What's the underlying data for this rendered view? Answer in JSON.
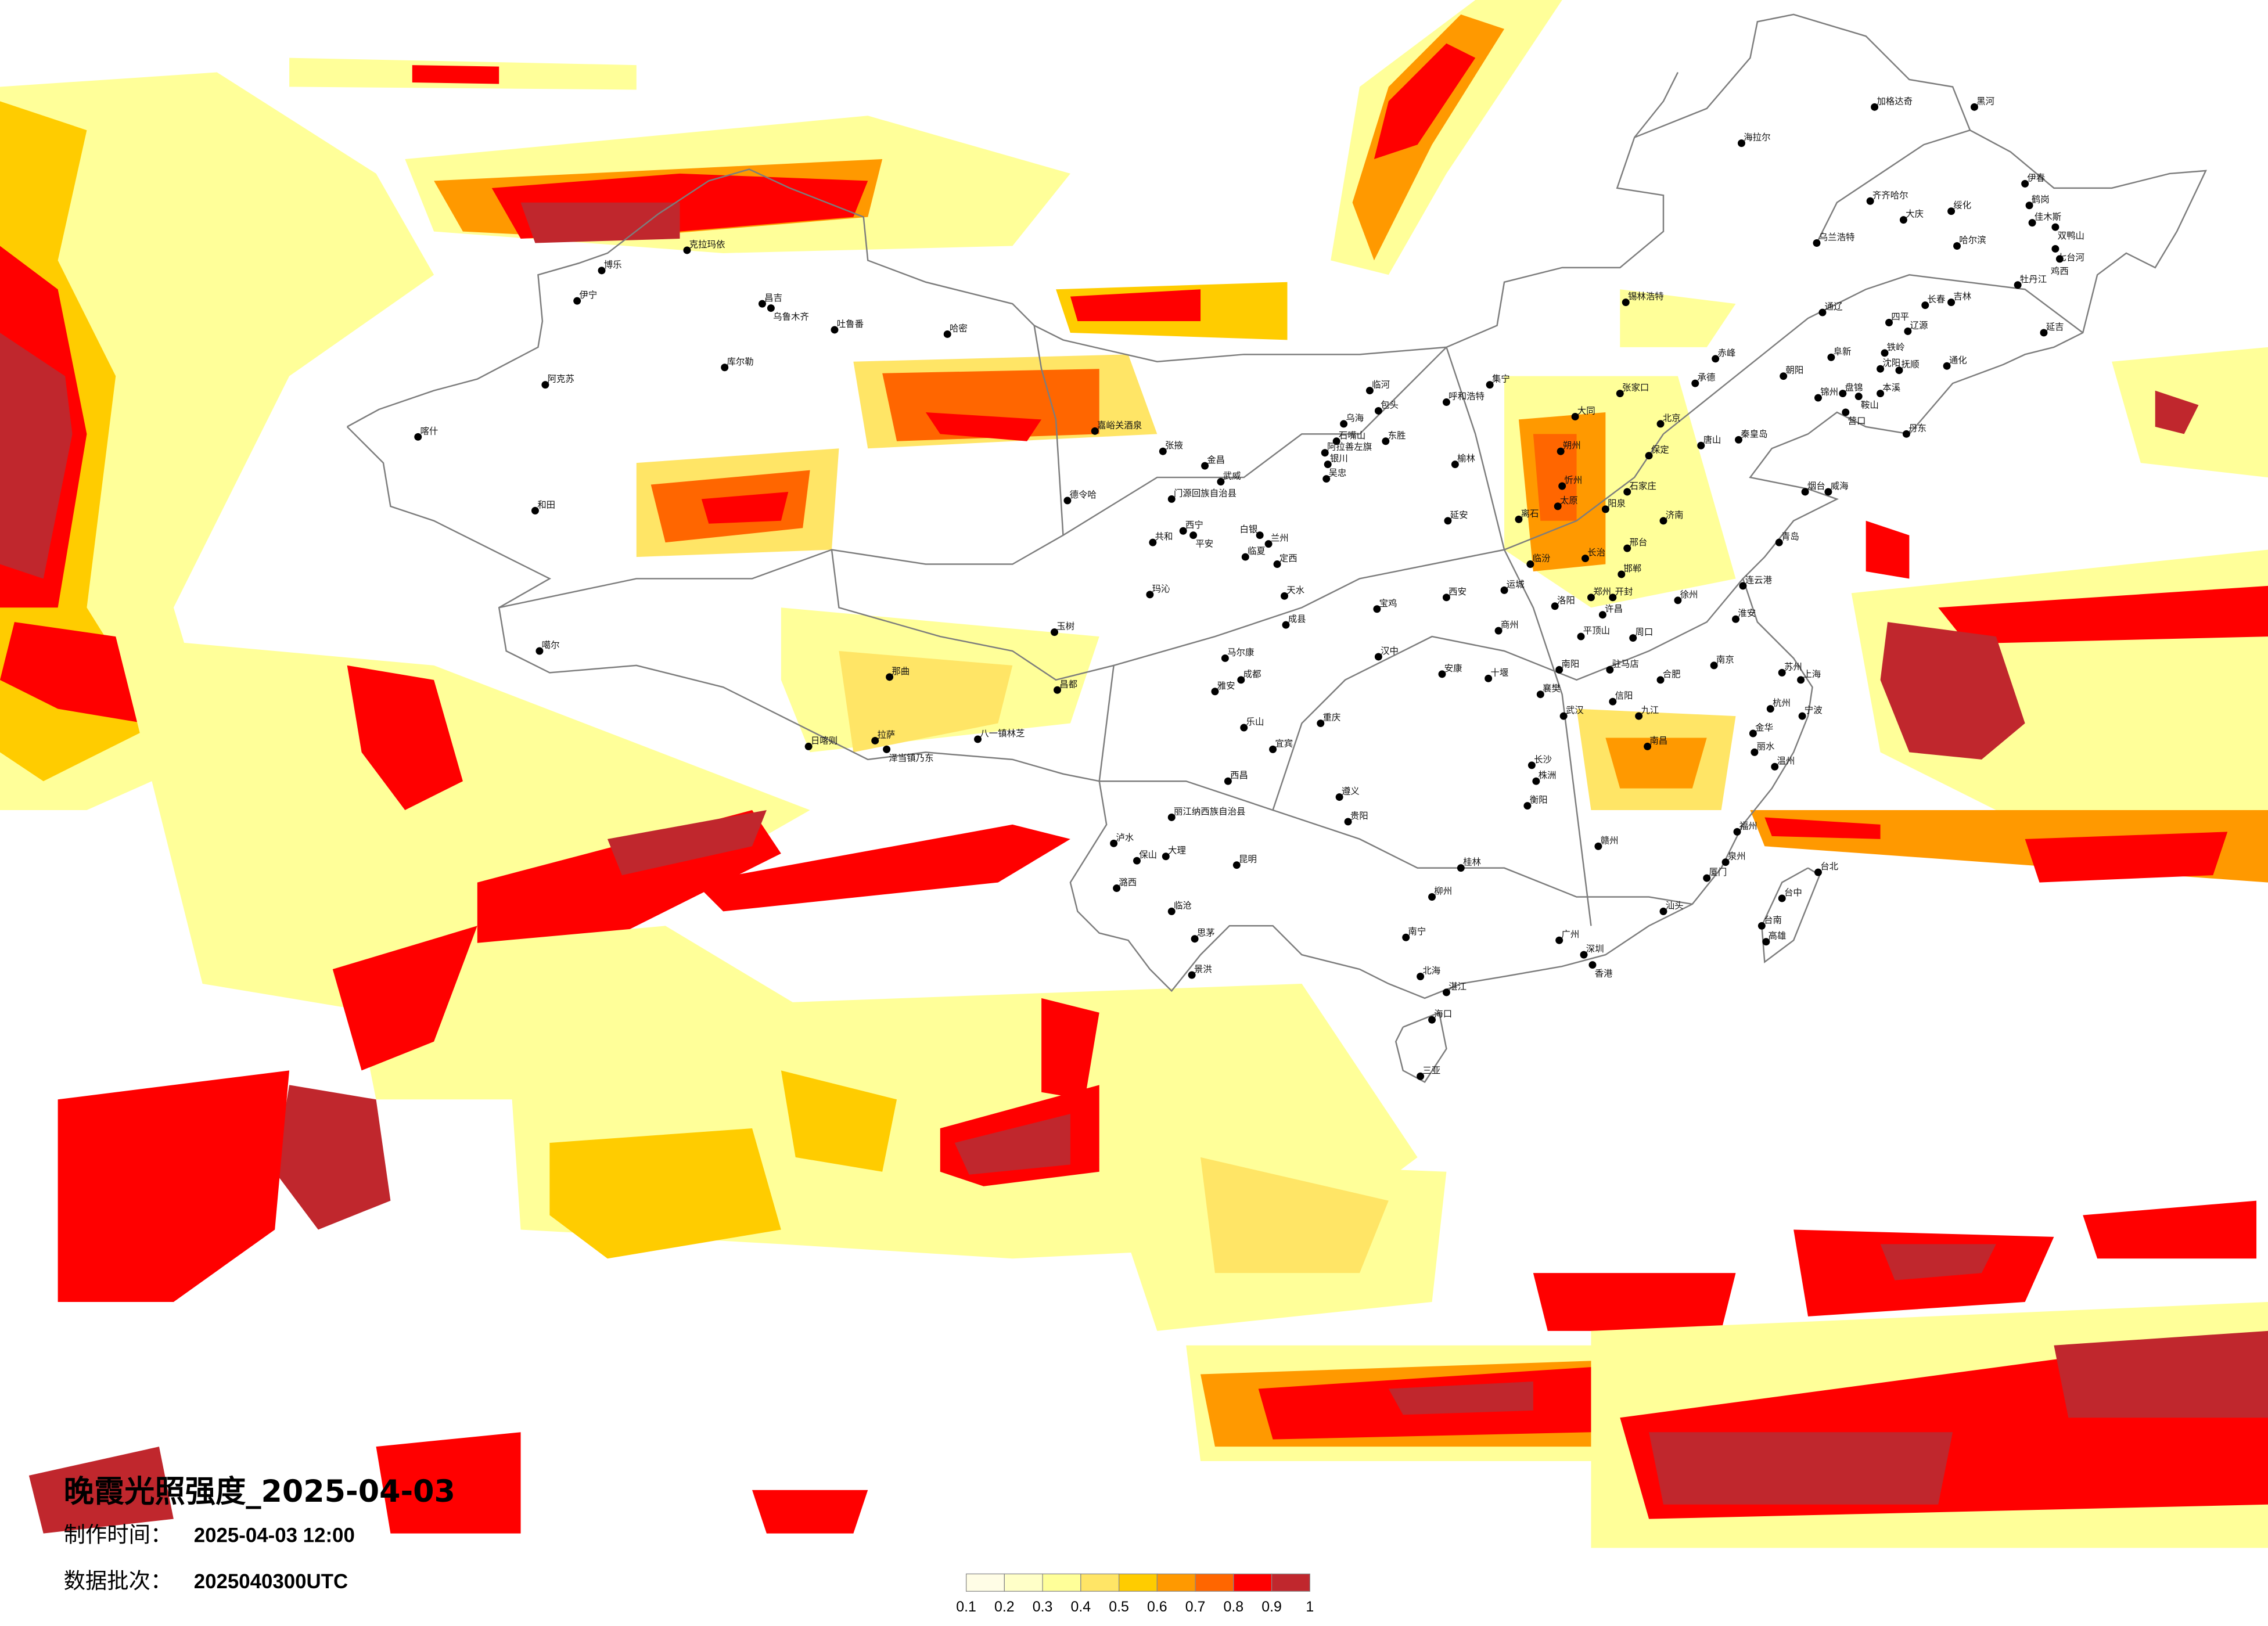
{
  "title": "晚霞光照强度_2025-04-03",
  "production_time": {
    "label": "制作时间：",
    "value": "2025-04-03 12:00"
  },
  "data_batch": {
    "label": "数据批次：",
    "value": "2025040300UTC"
  },
  "legend": {
    "colors": [
      "#fffde6",
      "#ffffc8",
      "#ffff99",
      "#ffe566",
      "#ffcc00",
      "#ff9900",
      "#ff6600",
      "#ff0000",
      "#c0272d"
    ],
    "ticks": [
      "0.1",
      "0.2",
      "0.3",
      "0.4",
      "0.5",
      "0.6",
      "0.7",
      "0.8",
      "0.9",
      "1"
    ]
  },
  "border_color": "#7d7d7d",
  "cities": [
    "博乐",
    "克拉玛依",
    "伊宁",
    "昌吉",
    "乌鲁木齐",
    "吐鲁番",
    "哈密",
    "库尔勒",
    "阿克苏",
    "喀什",
    "和田",
    "噶尔",
    "那曲",
    "日喀则",
    "拉萨",
    "泽当镇乃东",
    "八一镇林芝",
    "昌都",
    "玉树",
    "德令哈",
    "嘉峪关酒泉",
    "张掖",
    "金昌",
    "武威",
    "门源回族自治县",
    "西宁",
    "平安",
    "共和",
    "兰州",
    "白银",
    "临夏",
    "定西",
    "玛沁",
    "天水",
    "成县",
    "银川",
    "吴忠",
    "石嘴山",
    "乌海",
    "阿拉善左旗",
    "包头",
    "呼和浩特",
    "集宁",
    "东胜",
    "临河",
    "锡林浩特",
    "海拉尔",
    "加格达奇",
    "乌兰浩特",
    "赤峰",
    "通辽",
    "黑河",
    "齐齐哈尔",
    "大庆",
    "绥化",
    "伊春",
    "鹤岗",
    "佳木斯",
    "双鸭山",
    "哈尔滨",
    "七台河",
    "鸡西",
    "牡丹江",
    "长春",
    "吉林",
    "四平",
    "辽源",
    "延吉",
    "通化",
    "沈阳",
    "铁岭",
    "抚顺",
    "阜新",
    "朝阳",
    "锦州",
    "盘锦",
    "鞍山",
    "本溪",
    "营口",
    "丹东",
    "承德",
    "秦皇岛",
    "唐山",
    "北京",
    "张家口",
    "大同",
    "朔州",
    "忻州",
    "太原",
    "阳泉",
    "石家庄",
    "保定",
    "离石",
    "邢台",
    "邯郸",
    "延安",
    "榆林",
    "临汾",
    "长治",
    "运城",
    "洛阳",
    "郑州",
    "开封",
    "西安",
    "宝鸡",
    "汉中",
    "安康",
    "商州",
    "十堰",
    "南阳",
    "驻马店",
    "平顶山",
    "许昌",
    "周口",
    "信阳",
    "襄樊",
    "济南",
    "青岛",
    "烟台",
    "威海",
    "连云港",
    "徐州",
    "淮安",
    "南京",
    "合肥",
    "上海",
    "苏州",
    "杭州",
    "宁波",
    "温州",
    "丽水",
    "金华",
    "南昌",
    "九江",
    "武汉",
    "长沙",
    "株洲",
    "衡阳",
    "赣州",
    "福州",
    "厦门",
    "泉州",
    "台北",
    "台中",
    "台南",
    "高雄",
    "广州",
    "深圳",
    "香港",
    "汕头",
    "海口",
    "三亚",
    "南宁",
    "桂林",
    "柳州",
    "北海",
    "湛江",
    "成都",
    "重庆",
    "贵阳",
    "昆明",
    "大理",
    "丽江纳西族自治县",
    "西昌",
    "遵义",
    "宜宾",
    "乐山",
    "雅安",
    "马尔康",
    "景洪",
    "思茅",
    "临沧",
    "保山",
    "泸水",
    "潞西"
  ]
}
